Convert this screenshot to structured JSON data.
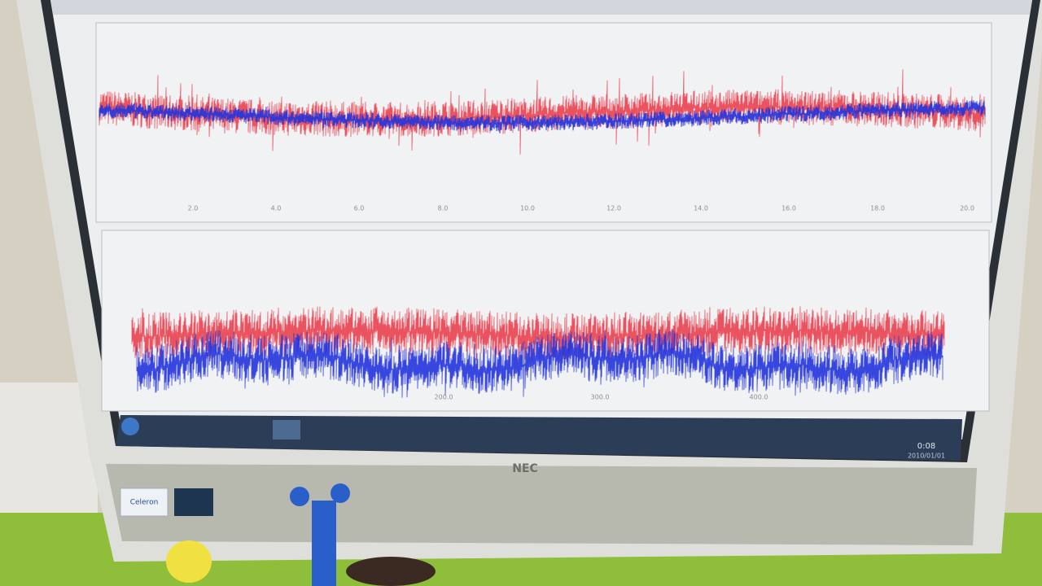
{
  "screen": {
    "top_panel": {
      "x_ticks": [
        "2.0",
        "4.0",
        "6.0",
        "8.0",
        "10.0",
        "12.0",
        "14.0",
        "16.0",
        "18.0",
        "20.0"
      ]
    },
    "bottom_panel": {
      "x_ticks": [
        "200.0",
        "300.0",
        "400.0"
      ]
    },
    "taskbar": {
      "time": "0:08",
      "date": "2010/01/01"
    }
  },
  "monitor": {
    "brand": "NEC",
    "sticker": "Celeron"
  }
}
